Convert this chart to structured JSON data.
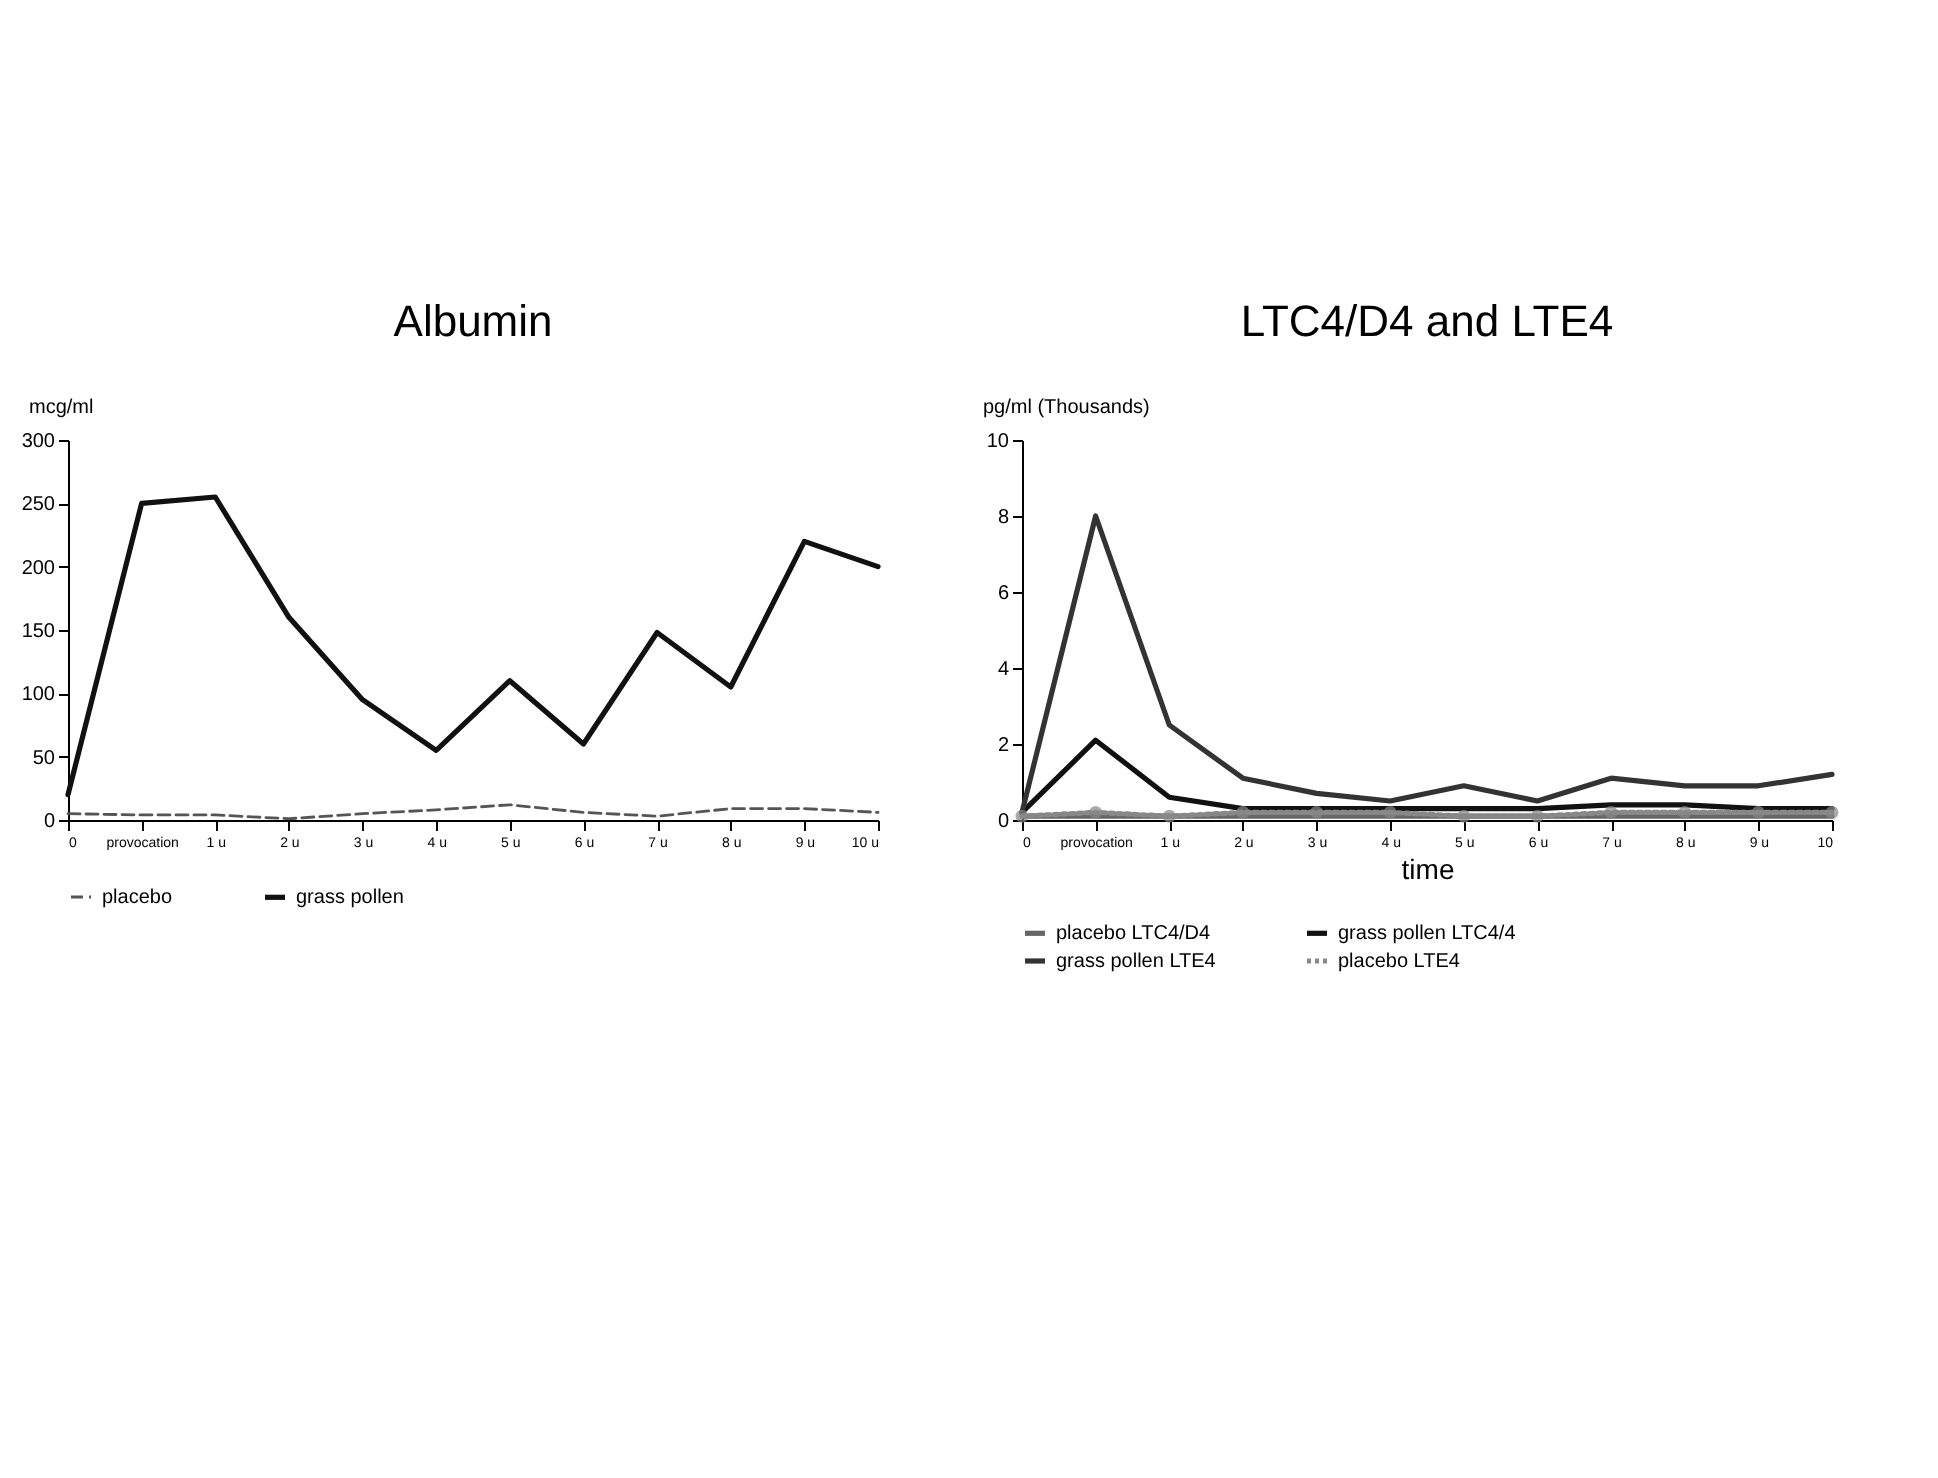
{
  "chart_data": [
    {
      "type": "line",
      "title": "Albumin",
      "ylabel": "mcg/ml",
      "categories": [
        "0",
        "provocation",
        "1 u",
        "2 u",
        "3 u",
        "4 u",
        "5 u",
        "6 u",
        "7 u",
        "8 u",
        "9 u",
        "10 u"
      ],
      "series": [
        {
          "name": "placebo",
          "color": "#555555",
          "line_style": "dashed",
          "values": [
            5,
            4,
            4,
            1,
            5,
            8,
            12,
            6,
            3,
            9,
            9,
            6
          ]
        },
        {
          "name": "grass pollen",
          "color": "#111111",
          "line_style": "solid",
          "values": [
            20,
            250,
            255,
            160,
            95,
            55,
            110,
            60,
            148,
            105,
            220,
            200
          ]
        }
      ],
      "ylim": [
        0,
        300
      ],
      "yticks": [
        0,
        50,
        100,
        150,
        200,
        250,
        300
      ],
      "legend": "bottom",
      "grid": false
    },
    {
      "type": "line",
      "title": "LTC4/D4 and LTE4",
      "ylabel": "pg/ml (Thousands)",
      "xlabel": "time",
      "categories": [
        "0",
        "provocation",
        "1 u",
        "2 u",
        "3 u",
        "4 u",
        "5 u",
        "6 u",
        "7 u",
        "8 u",
        "9 u",
        "10"
      ],
      "series": [
        {
          "name": "placebo LTC4/D4",
          "color": "#666666",
          "line_style": "solid",
          "values": [
            0.1,
            0.1,
            0.1,
            0.1,
            0.1,
            0.1,
            0.1,
            0.1,
            0.1,
            0.1,
            0.1,
            0.1
          ]
        },
        {
          "name": "grass pollen  LTC4/4",
          "color": "#111111",
          "line_style": "solid",
          "values": [
            0.2,
            2.1,
            0.6,
            0.3,
            0.3,
            0.3,
            0.3,
            0.3,
            0.4,
            0.4,
            0.3,
            0.3
          ]
        },
        {
          "name": "grass pollen LTE4",
          "color": "#333333",
          "line_style": "solid",
          "values": [
            0.2,
            8,
            2.5,
            1.1,
            0.7,
            0.5,
            0.9,
            0.5,
            1.1,
            0.9,
            0.9,
            1.2
          ]
        },
        {
          "name": "placebo LTE4",
          "color": "#888888",
          "line_style": "dotted",
          "marker": "circle",
          "values": [
            0.1,
            0.2,
            0.1,
            0.2,
            0.2,
            0.2,
            0.1,
            0.1,
            0.2,
            0.2,
            0.2,
            0.2
          ]
        }
      ],
      "ylim": [
        0,
        10
      ],
      "yticks": [
        0,
        2,
        4,
        6,
        8,
        10
      ],
      "legend": "bottom",
      "grid": false
    }
  ]
}
